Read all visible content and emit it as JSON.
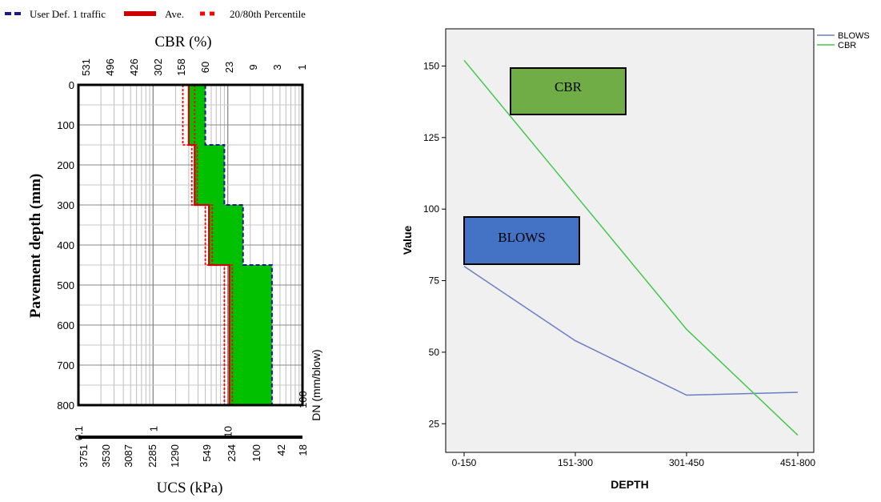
{
  "left_chart": {
    "legend": {
      "traffic": "User Def. 1 traffic",
      "ave": "Ave.",
      "percentile": "20/80th Percentile"
    },
    "top_axis_title": "CBR (%)",
    "top_ticks": [
      "531",
      "496",
      "426",
      "302",
      "158",
      "60",
      "23",
      "9",
      "3",
      "1"
    ],
    "y_title": "Pavement depth (mm)",
    "y_ticks": [
      "0",
      "100",
      "200",
      "300",
      "400",
      "500",
      "600",
      "700",
      "800"
    ],
    "dn_ticks": [
      "0.1",
      "1",
      "10",
      "100"
    ],
    "dn_title": "DN (mm/blow)",
    "ucs_ticks": [
      "3751",
      "3530",
      "3087",
      "2285",
      "1290",
      "549",
      "234",
      "100",
      "42",
      "18"
    ],
    "ucs_title": "UCS (kPa)",
    "colors": {
      "fill": "#00c000",
      "ave": "#cc0000",
      "traffic": "#1a1a8c",
      "percentile": "#ff0000"
    }
  },
  "chart_data": [
    {
      "type": "step",
      "title": "",
      "xlabel": "DN (mm/blow)",
      "ylabel": "Pavement depth (mm)",
      "xscale": "log",
      "xlim": [
        0.1,
        100
      ],
      "ylim": [
        800,
        0
      ],
      "series": [
        {
          "name": "User Def. 1 traffic",
          "segments": [
            {
              "depth": [
                0,
                150
              ],
              "dn": 5.0
            },
            {
              "depth": [
                150,
                300
              ],
              "dn": 9.0
            },
            {
              "depth": [
                300,
                450
              ],
              "dn": 16.0
            },
            {
              "depth": [
                450,
                800
              ],
              "dn": 39.0
            }
          ]
        },
        {
          "name": "Ave.",
          "segments": [
            {
              "depth": [
                0,
                150
              ],
              "dn": 3.0
            },
            {
              "depth": [
                150,
                300
              ],
              "dn": 3.6
            },
            {
              "depth": [
                300,
                450
              ],
              "dn": 5.6
            },
            {
              "depth": [
                450,
                800
              ],
              "dn": 10.5
            }
          ]
        },
        {
          "name": "20/80th Percentile",
          "segments": [
            {
              "depth": [
                0,
                150
              ],
              "dn": 2.5
            },
            {
              "depth": [
                150,
                300
              ],
              "dn": 3.3
            },
            {
              "depth": [
                300,
                450
              ],
              "dn": 5.0
            },
            {
              "depth": [
                450,
                800
              ],
              "dn": 9.0
            }
          ]
        },
        {
          "name": "20/80th Percentile",
          "segments": [
            {
              "depth": [
                0,
                150
              ],
              "dn": 3.6
            },
            {
              "depth": [
                150,
                300
              ],
              "dn": 3.9
            },
            {
              "depth": [
                300,
                450
              ],
              "dn": 6.2
            },
            {
              "depth": [
                450,
                800
              ],
              "dn": 11.5
            }
          ]
        }
      ]
    },
    {
      "type": "line",
      "title": "",
      "xlabel": "DEPTH",
      "ylabel": "Value",
      "categories": [
        "0-150",
        "151-300",
        "301-450",
        "451-800"
      ],
      "yticks": [
        25,
        50,
        75,
        100,
        125,
        150
      ],
      "ylim": [
        15,
        163
      ],
      "grid": false,
      "legend": "top-right",
      "annotations": [
        "CBR",
        "BLOWS"
      ],
      "series": [
        {
          "name": "BLOWS",
          "values": [
            80,
            54,
            35,
            36
          ],
          "color": "#6a7ec4"
        },
        {
          "name": "CBR",
          "values": [
            152,
            105,
            58,
            21
          ],
          "color": "#44c84c"
        }
      ],
      "annotation_colors": {
        "CBR": "#70ad47",
        "BLOWS": "#4472c4"
      }
    }
  ]
}
